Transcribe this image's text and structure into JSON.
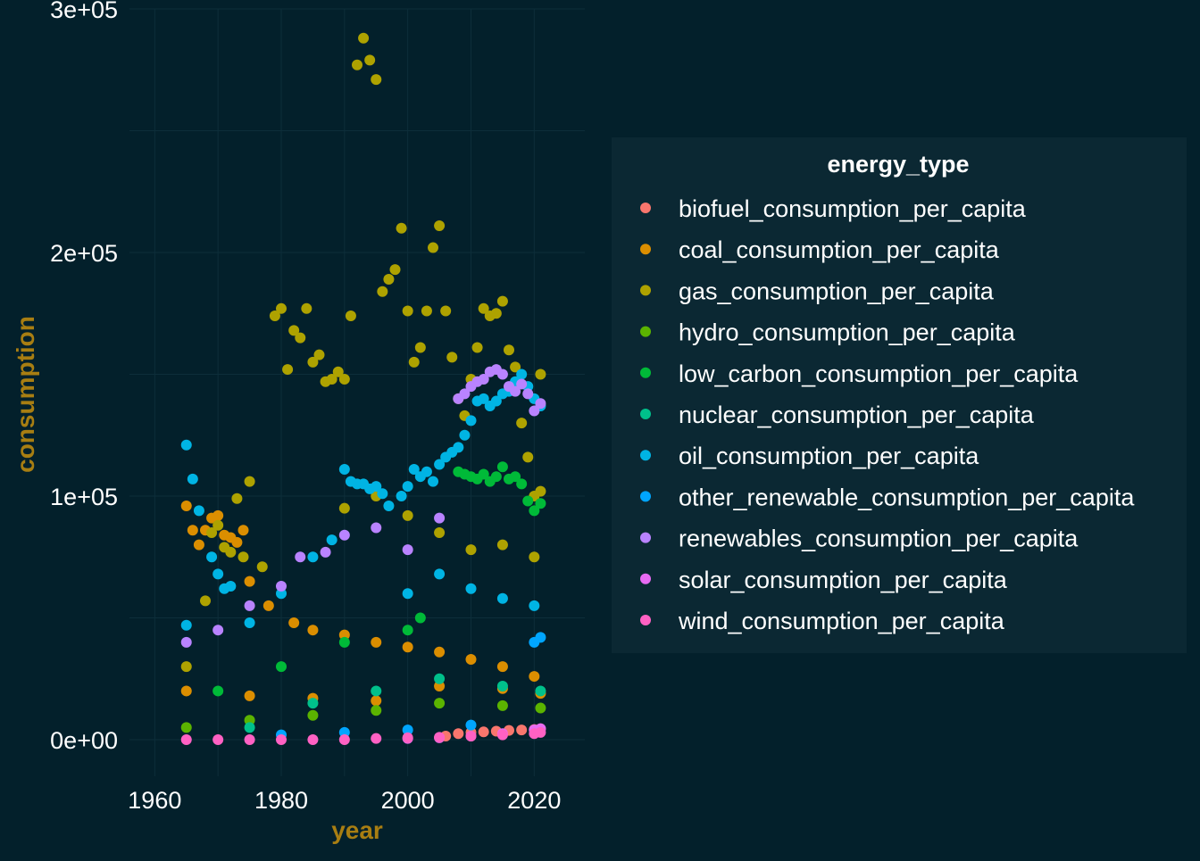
{
  "chart_data": {
    "type": "scatter",
    "title": "",
    "xlabel": "year",
    "ylabel": "consumption",
    "xlim": [
      1956,
      2028
    ],
    "ylim": [
      -15000,
      300000
    ],
    "x_ticks": [
      1960,
      1980,
      2000,
      2020
    ],
    "x_tick_labels": [
      "1960",
      "1980",
      "2000",
      "2020"
    ],
    "y_ticks": [
      0,
      100000,
      200000,
      300000
    ],
    "y_tick_labels": [
      "0e+00",
      "1e+05",
      "2e+05",
      "3e+05"
    ],
    "grid": true,
    "legend_title": "energy_type",
    "legend_position": "right",
    "series": [
      {
        "name": "biofuel_consumption_per_capita",
        "color": "#f8766d",
        "points": [
          [
            2006,
            1500
          ],
          [
            2008,
            2500
          ],
          [
            2010,
            3000
          ],
          [
            2012,
            3200
          ],
          [
            2014,
            3500
          ],
          [
            2016,
            3800
          ],
          [
            2018,
            4000
          ],
          [
            2020,
            4200
          ],
          [
            2021,
            4500
          ]
        ]
      },
      {
        "name": "coal_consumption_per_capita",
        "color": "#db8e00",
        "points": [
          [
            1965,
            96000
          ],
          [
            1966,
            86000
          ],
          [
            1967,
            80000
          ],
          [
            1968,
            86000
          ],
          [
            1969,
            91000
          ],
          [
            1970,
            92000
          ],
          [
            1971,
            84000
          ],
          [
            1972,
            83000
          ],
          [
            1973,
            81000
          ],
          [
            1974,
            86000
          ],
          [
            1975,
            65000
          ],
          [
            1978,
            55000
          ],
          [
            1982,
            48000
          ],
          [
            1985,
            45000
          ],
          [
            1990,
            43000
          ],
          [
            1995,
            40000
          ],
          [
            2000,
            38000
          ],
          [
            2005,
            36000
          ],
          [
            2010,
            33000
          ],
          [
            2015,
            30000
          ],
          [
            2020,
            26000
          ],
          [
            1965,
            20000
          ],
          [
            1975,
            18000
          ],
          [
            1985,
            17000
          ],
          [
            1995,
            16000
          ],
          [
            2005,
            22000
          ],
          [
            2015,
            21000
          ],
          [
            2021,
            19000
          ]
        ]
      },
      {
        "name": "gas_consumption_per_capita",
        "color": "#aea200",
        "points": [
          [
            1965,
            30000
          ],
          [
            1968,
            57000
          ],
          [
            1969,
            85000
          ],
          [
            1970,
            88000
          ],
          [
            1971,
            79000
          ],
          [
            1972,
            77000
          ],
          [
            1973,
            99000
          ],
          [
            1974,
            75000
          ],
          [
            1975,
            106000
          ],
          [
            1977,
            71000
          ],
          [
            1979,
            174000
          ],
          [
            1980,
            177000
          ],
          [
            1981,
            152000
          ],
          [
            1982,
            168000
          ],
          [
            1983,
            165000
          ],
          [
            1984,
            177000
          ],
          [
            1985,
            155000
          ],
          [
            1986,
            158000
          ],
          [
            1987,
            147000
          ],
          [
            1988,
            148000
          ],
          [
            1989,
            151000
          ],
          [
            1990,
            148000
          ],
          [
            1991,
            174000
          ],
          [
            1992,
            277000
          ],
          [
            1993,
            288000
          ],
          [
            1994,
            279000
          ],
          [
            1995,
            271000
          ],
          [
            1996,
            184000
          ],
          [
            1997,
            189000
          ],
          [
            1998,
            193000
          ],
          [
            1999,
            210000
          ],
          [
            2000,
            176000
          ],
          [
            2001,
            155000
          ],
          [
            2002,
            161000
          ],
          [
            2003,
            176000
          ],
          [
            2004,
            202000
          ],
          [
            2005,
            211000
          ],
          [
            2006,
            176000
          ],
          [
            2007,
            157000
          ],
          [
            2008,
            140000
          ],
          [
            2009,
            133000
          ],
          [
            2010,
            148000
          ],
          [
            2011,
            161000
          ],
          [
            2012,
            177000
          ],
          [
            2013,
            174000
          ],
          [
            2014,
            175000
          ],
          [
            2015,
            180000
          ],
          [
            2016,
            160000
          ],
          [
            2017,
            153000
          ],
          [
            2018,
            130000
          ],
          [
            2019,
            116000
          ],
          [
            2020,
            100000
          ],
          [
            2021,
            150000
          ],
          [
            1990,
            95000
          ],
          [
            1995,
            100000
          ],
          [
            2000,
            92000
          ],
          [
            2005,
            85000
          ],
          [
            2010,
            78000
          ],
          [
            2015,
            80000
          ],
          [
            2020,
            75000
          ],
          [
            2021,
            102000
          ]
        ]
      },
      {
        "name": "hydro_consumption_per_capita",
        "color": "#5bb300",
        "points": [
          [
            1965,
            5000
          ],
          [
            1975,
            8000
          ],
          [
            1985,
            10000
          ],
          [
            1995,
            12000
          ],
          [
            2005,
            15000
          ],
          [
            2015,
            14000
          ],
          [
            2021,
            13000
          ]
        ]
      },
      {
        "name": "low_carbon_consumption_per_capita",
        "color": "#00ba38",
        "points": [
          [
            1970,
            20000
          ],
          [
            1980,
            30000
          ],
          [
            1990,
            40000
          ],
          [
            2000,
            45000
          ],
          [
            2002,
            50000
          ],
          [
            2008,
            110000
          ],
          [
            2009,
            109000
          ],
          [
            2010,
            108000
          ],
          [
            2011,
            107000
          ],
          [
            2012,
            109000
          ],
          [
            2013,
            106000
          ],
          [
            2014,
            108000
          ],
          [
            2015,
            112000
          ],
          [
            2016,
            107000
          ],
          [
            2017,
            108000
          ],
          [
            2018,
            105000
          ],
          [
            2019,
            98000
          ],
          [
            2020,
            94000
          ],
          [
            2021,
            97000
          ]
        ]
      },
      {
        "name": "nuclear_consumption_per_capita",
        "color": "#00c08b",
        "points": [
          [
            1975,
            5000
          ],
          [
            1985,
            15000
          ],
          [
            1995,
            20000
          ],
          [
            2005,
            25000
          ],
          [
            2015,
            22000
          ],
          [
            2021,
            20000
          ]
        ]
      },
      {
        "name": "oil_consumption_per_capita",
        "color": "#00b4e4",
        "points": [
          [
            1965,
            121000
          ],
          [
            1965,
            47000
          ],
          [
            1966,
            107000
          ],
          [
            1967,
            94000
          ],
          [
            1969,
            75000
          ],
          [
            1970,
            68000
          ],
          [
            1971,
            62000
          ],
          [
            1972,
            63000
          ],
          [
            1975,
            48000
          ],
          [
            1980,
            60000
          ],
          [
            1985,
            75000
          ],
          [
            1988,
            82000
          ],
          [
            1990,
            111000
          ],
          [
            1991,
            106000
          ],
          [
            1992,
            105000
          ],
          [
            1993,
            105000
          ],
          [
            1994,
            103000
          ],
          [
            1995,
            104000
          ],
          [
            1996,
            101000
          ],
          [
            1997,
            96000
          ],
          [
            1999,
            100000
          ],
          [
            2000,
            104000
          ],
          [
            2001,
            111000
          ],
          [
            2002,
            108000
          ],
          [
            2003,
            110000
          ],
          [
            2004,
            106000
          ],
          [
            2005,
            113000
          ],
          [
            2006,
            116000
          ],
          [
            2007,
            118000
          ],
          [
            2008,
            120000
          ],
          [
            2009,
            125000
          ],
          [
            2010,
            131000
          ],
          [
            2011,
            139000
          ],
          [
            2012,
            140000
          ],
          [
            2013,
            137000
          ],
          [
            2014,
            139000
          ],
          [
            2015,
            142000
          ],
          [
            2016,
            143000
          ],
          [
            2017,
            147000
          ],
          [
            2018,
            150000
          ],
          [
            2019,
            145000
          ],
          [
            2020,
            140000
          ],
          [
            2021,
            137000
          ],
          [
            2000,
            60000
          ],
          [
            2005,
            68000
          ],
          [
            2010,
            62000
          ],
          [
            2015,
            58000
          ],
          [
            2020,
            55000
          ]
        ]
      },
      {
        "name": "other_renewable_consumption_per_capita",
        "color": "#00a5ff",
        "points": [
          [
            1980,
            2000
          ],
          [
            1990,
            3000
          ],
          [
            2000,
            4000
          ],
          [
            2010,
            6000
          ],
          [
            2020,
            40000
          ],
          [
            2021,
            42000
          ]
        ]
      },
      {
        "name": "renewables_consumption_per_capita",
        "color": "#b983ff",
        "points": [
          [
            1965,
            40000
          ],
          [
            1970,
            45000
          ],
          [
            1975,
            55000
          ],
          [
            1980,
            63000
          ],
          [
            1983,
            75000
          ],
          [
            1987,
            77000
          ],
          [
            1990,
            84000
          ],
          [
            1995,
            87000
          ],
          [
            2000,
            78000
          ],
          [
            2005,
            91000
          ],
          [
            2008,
            140000
          ],
          [
            2009,
            142000
          ],
          [
            2010,
            145000
          ],
          [
            2011,
            147000
          ],
          [
            2012,
            148000
          ],
          [
            2013,
            151000
          ],
          [
            2014,
            152000
          ],
          [
            2015,
            150000
          ],
          [
            2016,
            145000
          ],
          [
            2017,
            143000
          ],
          [
            2018,
            146000
          ],
          [
            2019,
            142000
          ],
          [
            2020,
            135000
          ],
          [
            2021,
            138000
          ]
        ]
      },
      {
        "name": "solar_consumption_per_capita",
        "color": "#e76bf3",
        "points": [
          [
            2000,
            500
          ],
          [
            2005,
            800
          ],
          [
            2010,
            1500
          ],
          [
            2015,
            2500
          ],
          [
            2020,
            4000
          ],
          [
            2021,
            4500
          ]
        ]
      },
      {
        "name": "wind_consumption_per_capita",
        "color": "#ff61c3",
        "points": [
          [
            1965,
            0
          ],
          [
            1970,
            0
          ],
          [
            1975,
            0
          ],
          [
            1980,
            0
          ],
          [
            1985,
            0
          ],
          [
            1990,
            0
          ],
          [
            1995,
            500
          ],
          [
            2000,
            800
          ],
          [
            2005,
            1000
          ],
          [
            2010,
            1500
          ],
          [
            2015,
            2000
          ],
          [
            2020,
            2500
          ],
          [
            2021,
            3000
          ]
        ]
      }
    ]
  }
}
